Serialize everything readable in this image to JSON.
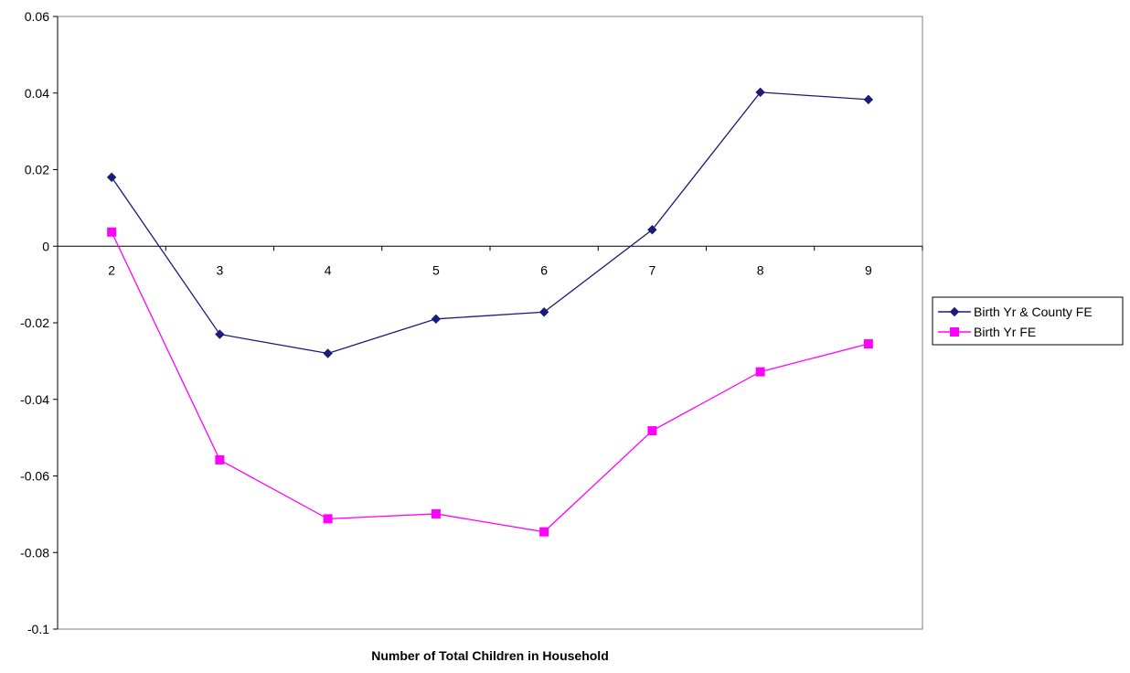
{
  "chart_data": {
    "type": "line",
    "title": "",
    "xlabel": "Number of Total Children in Household",
    "ylabel": "",
    "categories": [
      "2",
      "3",
      "4",
      "5",
      "6",
      "7",
      "8",
      "9"
    ],
    "ylim": [
      -0.1,
      0.06
    ],
    "yticks": [
      0.06,
      0.04,
      0.02,
      0,
      -0.02,
      -0.04,
      -0.06,
      -0.08,
      -0.1
    ],
    "ytick_labels": [
      "0.06",
      "0.04",
      "0.02",
      "0",
      "-0.02",
      "-0.04",
      "-0.06",
      "-0.08",
      "-0.1"
    ],
    "grid": false,
    "legend_position": "right",
    "series": [
      {
        "name": "Birth Yr & County FE",
        "values": [
          0.018,
          -0.023,
          -0.028,
          -0.019,
          -0.0172,
          0.0043,
          0.0402,
          0.0383
        ],
        "color": "#1b1b7a",
        "marker": "diamond"
      },
      {
        "name": "Birth Yr FE",
        "values": [
          0.0037,
          -0.0558,
          -0.0712,
          -0.0699,
          -0.0746,
          -0.0482,
          -0.0328,
          -0.0255
        ],
        "color": "#ff00ff",
        "marker": "square"
      }
    ]
  }
}
